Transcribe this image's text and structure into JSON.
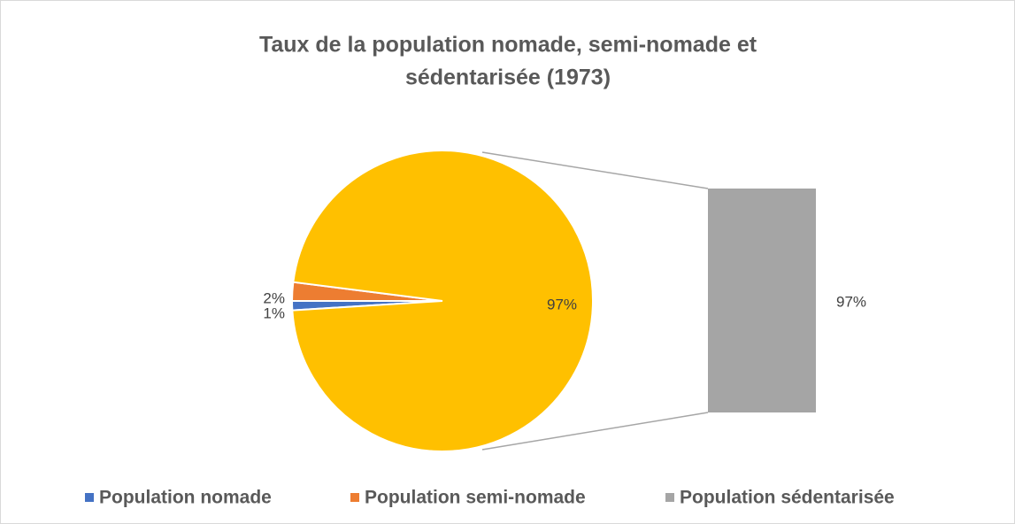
{
  "chart_data": {
    "type": "bar-of-pie",
    "title": "Taux de la population nomade, semi-nomade et sédentarisée (1973)",
    "title_lines": [
      "Taux de la population nomade, semi-nomade et",
      "sédentarisée (1973)"
    ],
    "categories": [
      "Population nomade",
      "Population semi-nomade",
      "Population sédentarisée"
    ],
    "values": [
      1,
      2,
      97
    ],
    "value_labels": [
      "1%",
      "2%",
      "97%"
    ],
    "colors": [
      "#4472c4",
      "#ed7d31",
      "#a5a5a5"
    ],
    "other_color": "#ffc000",
    "legend": "bottom"
  }
}
